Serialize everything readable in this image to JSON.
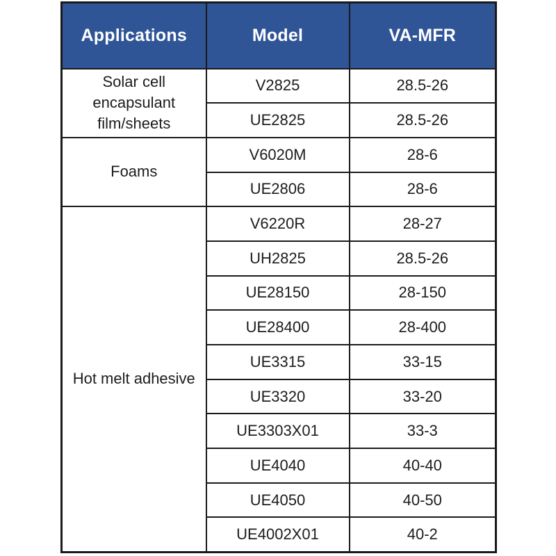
{
  "chart_data": {
    "type": "table",
    "columns": [
      "Applications",
      "Model",
      "VA-MFR"
    ],
    "groups": [
      {
        "application": "Solar cell encapsulant film/sheets",
        "rows": [
          {
            "model": "V2825",
            "va_mfr": "28.5-26"
          },
          {
            "model": "UE2825",
            "va_mfr": "28.5-26"
          }
        ]
      },
      {
        "application": "Foams",
        "rows": [
          {
            "model": "V6020M",
            "va_mfr": "28-6"
          },
          {
            "model": "UE2806",
            "va_mfr": "28-6"
          }
        ]
      },
      {
        "application": "Hot melt adhesive",
        "rows": [
          {
            "model": "V6220R",
            "va_mfr": "28-27"
          },
          {
            "model": "UH2825",
            "va_mfr": "28.5-26"
          },
          {
            "model": "UE28150",
            "va_mfr": "28-150"
          },
          {
            "model": "UE28400",
            "va_mfr": "28-400"
          },
          {
            "model": "UE3315",
            "va_mfr": "33-15"
          },
          {
            "model": "UE3320",
            "va_mfr": "33-20"
          },
          {
            "model": "UE3303X01",
            "va_mfr": "33-3"
          },
          {
            "model": "UE4040",
            "va_mfr": "40-40"
          },
          {
            "model": "UE4050",
            "va_mfr": "40-50"
          },
          {
            "model": "UE4002X01",
            "va_mfr": "40-2"
          }
        ]
      }
    ]
  },
  "colors": {
    "header_bg": "#2F5597",
    "header_text": "#FFFFFF",
    "border": "#1A1A1A",
    "cell_text": "#1C1C1C",
    "background": "#FFFFFF"
  }
}
